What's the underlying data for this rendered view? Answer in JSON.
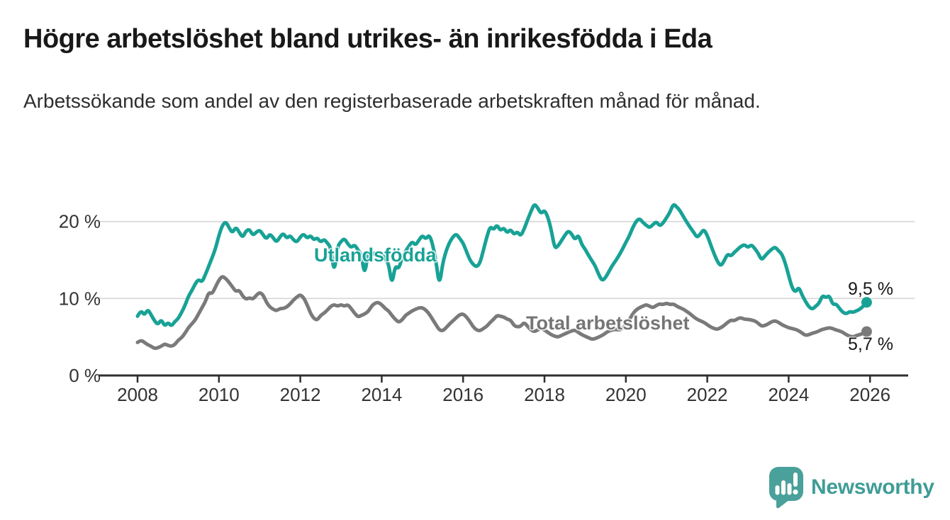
{
  "header": {
    "title": "Högre arbetslöshet bland utrikes- än inrikesfödda i Eda",
    "subtitle": "Arbetssökande som andel av den registerbaserade arbetskraften månad för månad."
  },
  "chart_data": {
    "type": "line",
    "title": "Högre arbetslöshet bland utrikes- än inrikesfödda i Eda",
    "subtitle": "Arbetssökande som andel av den registerbaserade arbetskraften månad för månad.",
    "unit": "%",
    "x_start_year": 2008,
    "points_per_year": 12,
    "x_axis_ticks": [
      2008,
      2010,
      2012,
      2014,
      2016,
      2018,
      2020,
      2022,
      2024,
      2026
    ],
    "y_axis_ticks": [
      {
        "value": 0,
        "label": "0 %"
      },
      {
        "value": 10,
        "label": "10 %"
      },
      {
        "value": 20,
        "label": "20 %"
      }
    ],
    "ylim": [
      0,
      23
    ],
    "grid": "horizontal",
    "legend_position": "inline-labels",
    "series": [
      {
        "name": "Utlandsfödda",
        "color": "#18a296",
        "end_label": "9,5 %",
        "end_value": 9.5,
        "values": [
          7.7,
          8.5,
          7.8,
          8.6,
          7.9,
          7.1,
          6.6,
          7.3,
          6.4,
          6.9,
          6.4,
          7.0,
          7.4,
          8.2,
          9.1,
          10.3,
          11.0,
          11.9,
          12.5,
          12.1,
          13.1,
          14.2,
          15.3,
          16.5,
          18.2,
          19.5,
          20.0,
          19.2,
          18.5,
          19.3,
          18.6,
          17.9,
          18.8,
          19.0,
          18.2,
          18.6,
          18.9,
          18.3,
          17.7,
          18.4,
          17.9,
          17.3,
          18.0,
          18.5,
          17.8,
          18.2,
          17.6,
          17.3,
          18.0,
          18.4,
          17.8,
          18.2,
          17.6,
          17.9,
          17.3,
          17.7,
          17.2,
          16.6,
          13.2,
          16.8,
          17.4,
          17.8,
          17.1,
          16.6,
          17.0,
          16.3,
          15.7,
          12.9,
          16.2,
          15.6,
          16.0,
          15.4,
          15.8,
          15.2,
          14.6,
          11.7,
          14.3,
          13.8,
          15.3,
          16.1,
          16.8,
          17.4,
          16.9,
          17.6,
          18.2,
          17.7,
          18.3,
          17.1,
          14.9,
          11.6,
          14.6,
          16.2,
          17.3,
          18.0,
          18.4,
          17.8,
          17.2,
          16.1,
          15.0,
          14.4,
          14.1,
          14.6,
          16.3,
          18.0,
          19.4,
          18.9,
          19.6,
          18.8,
          19.2,
          18.5,
          19.0,
          18.3,
          18.7,
          18.1,
          19.0,
          20.2,
          21.3,
          22.3,
          21.8,
          21.0,
          21.5,
          20.6,
          18.9,
          16.5,
          16.8,
          17.5,
          18.2,
          18.8,
          18.4,
          17.6,
          18.3,
          17.0,
          16.4,
          15.6,
          14.9,
          14.2,
          13.1,
          12.3,
          12.7,
          13.5,
          14.3,
          14.9,
          15.6,
          16.4,
          17.3,
          18.1,
          19.2,
          20.0,
          20.4,
          19.9,
          19.5,
          19.2,
          19.6,
          20.0,
          19.4,
          19.8,
          20.5,
          21.2,
          22.3,
          21.9,
          21.4,
          20.6,
          19.9,
          19.2,
          18.6,
          17.9,
          18.4,
          19.0,
          18.2,
          17.0,
          15.8,
          14.8,
          14.2,
          14.9,
          15.8,
          15.5,
          16.0,
          16.4,
          16.8,
          17.0,
          16.6,
          17.0,
          16.5,
          15.9,
          15.0,
          15.5,
          16.0,
          16.4,
          16.7,
          16.2,
          15.8,
          14.6,
          13.0,
          11.4,
          10.8,
          11.5,
          10.4,
          9.6,
          8.9,
          8.6,
          9.0,
          9.4,
          10.4,
          10.1,
          10.4,
          9.2,
          9.3,
          8.7,
          8.2,
          8.0,
          8.3,
          8.2,
          8.4,
          8.6,
          9.0,
          9.5
        ]
      },
      {
        "name": "Total arbetslöshet",
        "color": "#7a7a7a",
        "end_label": "5,7 %",
        "end_value": 5.7,
        "values": [
          4.3,
          4.6,
          4.3,
          4.0,
          3.8,
          3.5,
          3.6,
          3.8,
          4.1,
          3.9,
          3.8,
          4.0,
          4.6,
          4.9,
          5.5,
          6.2,
          6.7,
          7.2,
          8.0,
          8.8,
          9.6,
          10.8,
          10.6,
          11.5,
          12.4,
          12.9,
          12.6,
          12.1,
          11.5,
          10.9,
          11.1,
          10.3,
          9.9,
          10.1,
          9.9,
          10.4,
          10.8,
          10.5,
          9.5,
          8.9,
          8.6,
          8.4,
          8.7,
          8.7,
          8.9,
          9.3,
          9.8,
          10.2,
          10.5,
          10.1,
          9.2,
          8.1,
          7.4,
          7.2,
          7.8,
          8.1,
          8.5,
          9.0,
          9.2,
          9.0,
          9.2,
          9.0,
          9.2,
          8.7,
          8.1,
          7.6,
          7.8,
          8.0,
          8.3,
          9.0,
          9.4,
          9.5,
          9.2,
          8.7,
          8.4,
          7.8,
          7.3,
          6.9,
          7.2,
          7.8,
          8.1,
          8.4,
          8.6,
          8.8,
          8.8,
          8.5,
          8.0,
          7.3,
          6.6,
          5.9,
          5.8,
          6.2,
          6.7,
          7.1,
          7.5,
          7.9,
          8.0,
          7.6,
          7.0,
          6.3,
          5.9,
          5.8,
          6.1,
          6.4,
          6.9,
          7.3,
          7.8,
          7.7,
          7.6,
          7.3,
          7.2,
          6.5,
          6.3,
          6.4,
          6.9,
          6.4,
          5.9,
          5.7,
          5.9,
          6.2,
          5.9,
          5.6,
          5.3,
          5.1,
          5.0,
          5.2,
          5.4,
          5.6,
          5.8,
          5.9,
          5.6,
          5.3,
          5.1,
          4.9,
          4.7,
          4.8,
          5.0,
          5.2,
          5.5,
          5.8,
          5.9,
          6.0,
          5.9,
          6.1,
          6.6,
          7.2,
          8.0,
          8.5,
          8.8,
          9.0,
          9.2,
          9.0,
          8.8,
          9.1,
          9.3,
          9.2,
          9.4,
          9.2,
          9.3,
          9.0,
          8.8,
          8.6,
          8.3,
          8.0,
          7.6,
          7.3,
          7.1,
          6.9,
          6.6,
          6.3,
          6.1,
          6.0,
          6.2,
          6.5,
          6.9,
          7.2,
          7.1,
          7.4,
          7.5,
          7.3,
          7.3,
          7.2,
          7.1,
          6.8,
          6.4,
          6.5,
          6.7,
          7.0,
          7.1,
          6.9,
          6.6,
          6.4,
          6.2,
          6.1,
          6.0,
          5.8,
          5.5,
          5.2,
          5.3,
          5.5,
          5.6,
          5.8,
          6.0,
          6.1,
          6.2,
          6.1,
          5.9,
          5.8,
          5.6,
          5.3,
          5.1,
          5.0,
          5.2,
          5.3,
          5.5,
          5.7
        ]
      }
    ]
  },
  "footer": {
    "brand": "Newsworthy"
  },
  "colors": {
    "accent_teal": "#18a296",
    "series_gray": "#7a7a7a",
    "logo_bubble": "#4aa09a",
    "logo_text": "#3f9d96",
    "axis": "#2f2f2f",
    "gridline": "#d6d6d6",
    "text_dark": "#191919"
  }
}
